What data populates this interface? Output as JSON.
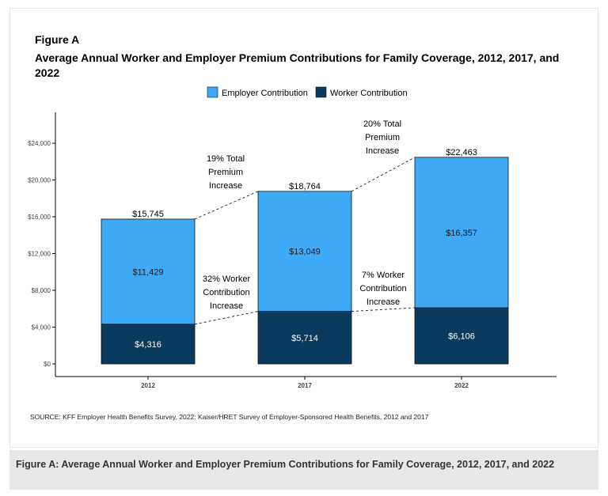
{
  "figure": {
    "label": "Figure A",
    "title": "Average Annual Worker and Employer Premium Contributions for Family Coverage, 2012, 2017, and 2022",
    "source": "SOURCE: KFF Employer Health Benefits Survey, 2022; Kaiser/HRET Survey of Employer-Sponsored Health Benefits, 2012 and 2017",
    "caption": "Figure A: Average Annual Worker and Employer Premium Contributions for Family Coverage, 2012, 2017, and 2022"
  },
  "chart_data": {
    "type": "bar",
    "stacked": true,
    "categories": [
      "2012",
      "2017",
      "2022"
    ],
    "series": [
      {
        "name": "Worker Contribution",
        "color": "#0a3a5e",
        "text_color": "#ffffff",
        "values": [
          4316,
          5714,
          6106
        ],
        "labels": [
          "$4,316",
          "$5,714",
          "$6,106"
        ]
      },
      {
        "name": "Employer Contribution",
        "color": "#3ea9f5",
        "text_color": "#1a1a1a",
        "values": [
          11429,
          13049,
          16357
        ],
        "labels": [
          "$11,429",
          "$13,049",
          "$16,357"
        ]
      }
    ],
    "totals": [
      15745,
      18764,
      22463
    ],
    "total_labels": [
      "$15,745",
      "$18,764",
      "$22,463"
    ],
    "legend": [
      "Employer Contribution",
      "Worker Contribution"
    ],
    "legend_position": "top-center",
    "ylim": [
      0,
      26000
    ],
    "yticks": [
      0,
      4000,
      8000,
      12000,
      16000,
      20000,
      24000
    ],
    "ytick_labels": [
      "$0",
      "$4,000",
      "$8,000",
      "$12,000",
      "$16,000",
      "$20,000",
      "$24,000"
    ],
    "xlabel": "",
    "ylabel": "",
    "grid": false,
    "annotations": [
      {
        "lines": [
          "19% Total",
          "Premium",
          "Increase"
        ],
        "between": "2012-2017",
        "level": "total"
      },
      {
        "lines": [
          "20% Total",
          "Premium",
          "Increase"
        ],
        "between": "2017-2022",
        "level": "total"
      },
      {
        "lines": [
          "32% Worker",
          "Contribution",
          "Increase"
        ],
        "between": "2012-2017",
        "level": "worker"
      },
      {
        "lines": [
          "7% Worker",
          "Contribution",
          "Increase"
        ],
        "between": "2017-2022",
        "level": "worker"
      }
    ]
  }
}
